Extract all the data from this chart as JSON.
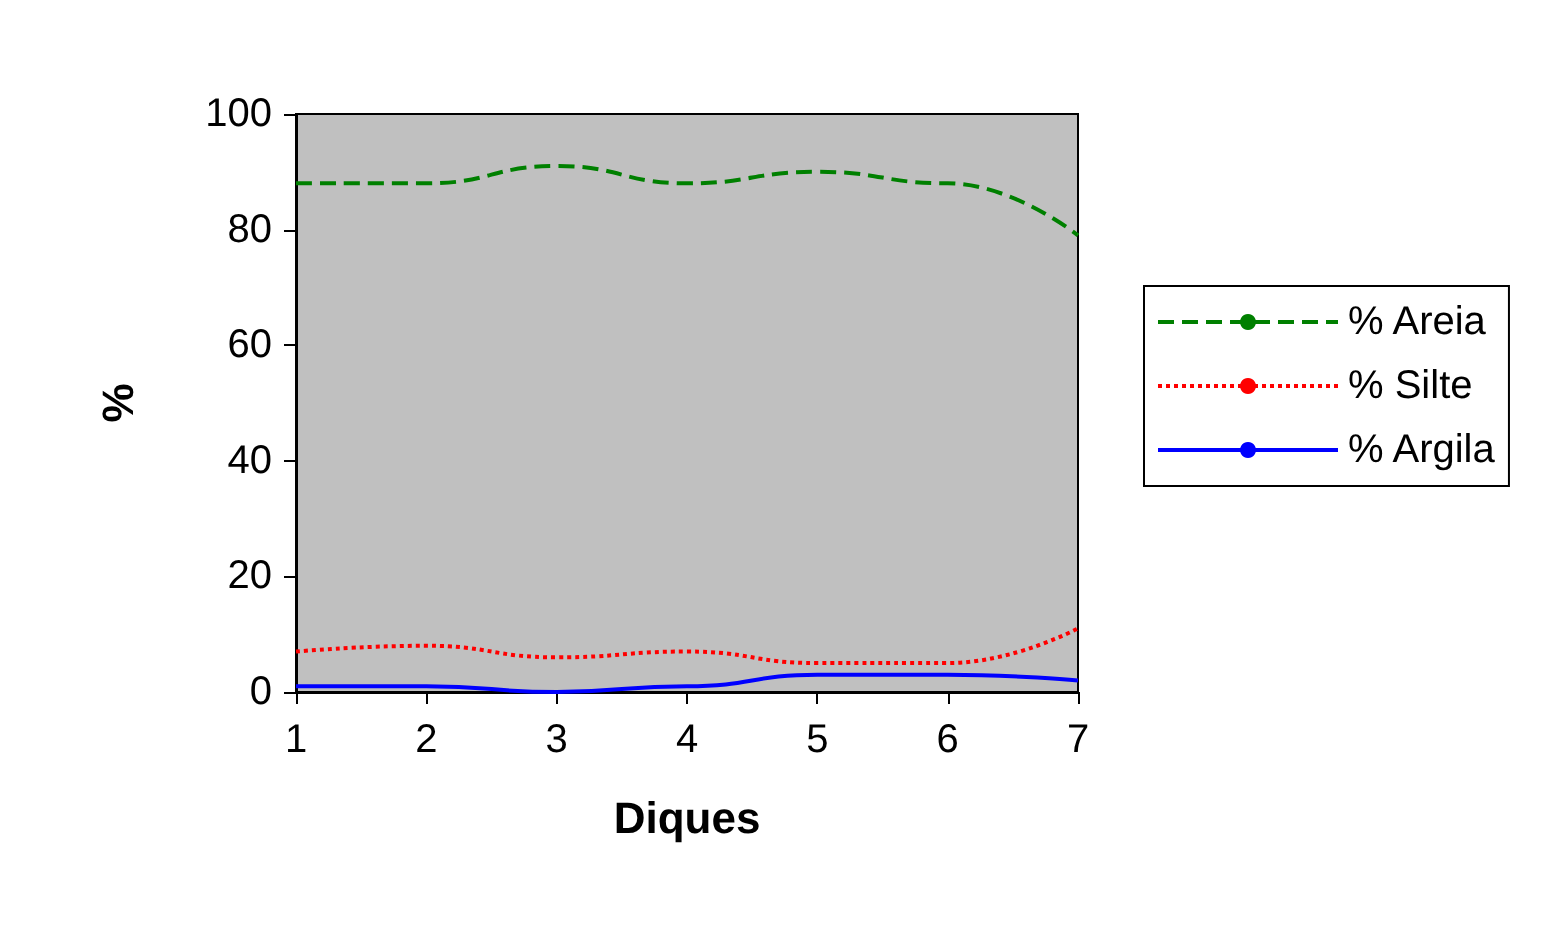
{
  "chart_data": {
    "type": "line",
    "xlabel": "Diques",
    "ylabel": "%",
    "x": [
      1,
      2,
      3,
      4,
      5,
      6,
      7
    ],
    "xlim": [
      1,
      7
    ],
    "xticks": [
      1,
      2,
      3,
      4,
      5,
      6,
      7
    ],
    "ylim": [
      0,
      100
    ],
    "yticks": [
      0,
      20,
      40,
      60,
      80,
      100
    ],
    "grid": false,
    "legend": "right",
    "series": [
      {
        "name": "% Areia",
        "color": "#008000",
        "line_style": "dashed",
        "values": [
          88,
          88,
          91,
          88,
          90,
          88,
          79
        ]
      },
      {
        "name": "% Silte",
        "color": "#ff0000",
        "line_style": "dotted",
        "values": [
          7,
          8,
          6,
          7,
          5,
          5,
          11
        ]
      },
      {
        "name": "% Argila",
        "color": "#0000ff",
        "line_style": "solid",
        "values": [
          1,
          1,
          0,
          1,
          3,
          3,
          2
        ]
      }
    ]
  }
}
